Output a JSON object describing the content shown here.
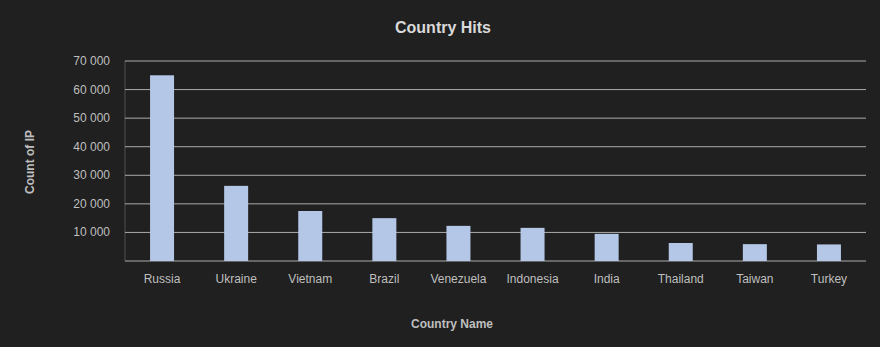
{
  "chart_data": {
    "type": "bar",
    "title": "Country Hits",
    "x_label": "Country Name",
    "y_label": "Count of IP",
    "categories": [
      "Russia",
      "Ukraine",
      "Vietnam",
      "Brazil",
      "Venezuela",
      "Indonesia",
      "India",
      "Thailand",
      "Taiwan",
      "Turkey"
    ],
    "values": [
      65000,
      26300,
      17500,
      15000,
      12300,
      11600,
      9500,
      6300,
      5900,
      5800
    ],
    "color": "#b4c7e7",
    "ylim": [
      0,
      70000
    ],
    "yticks": [
      {
        "value": 10000,
        "label": "10 000"
      },
      {
        "value": 20000,
        "label": "20 000"
      },
      {
        "value": 30000,
        "label": "30 000"
      },
      {
        "value": 40000,
        "label": "40 000"
      },
      {
        "value": 50000,
        "label": "50 000"
      },
      {
        "value": 60000,
        "label": "60 000"
      },
      {
        "value": 70000,
        "label": "70 000"
      }
    ],
    "grid": true
  }
}
